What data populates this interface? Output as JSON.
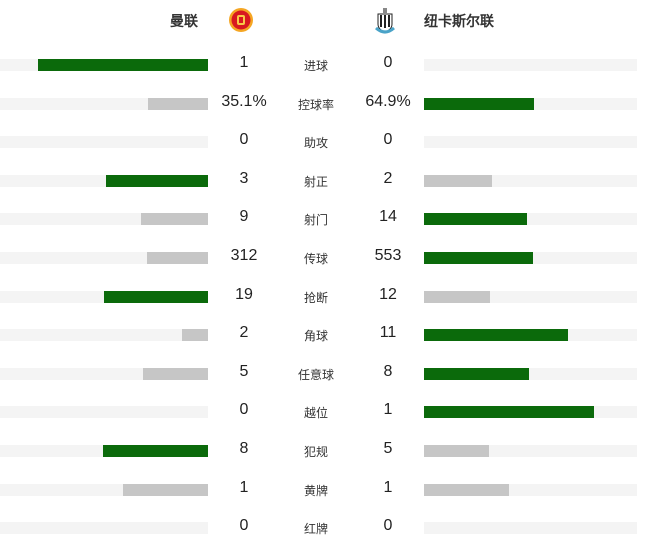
{
  "header": {
    "home": "曼联",
    "away": "纽卡斯尔联",
    "home_logo": "manchester-united-crest",
    "away_logo": "newcastle-crest"
  },
  "colors": {
    "leader": "#0b6a0b",
    "trailer": "#c6c6c6",
    "track": "#f4f4f4"
  },
  "stats": [
    {
      "label": "进球",
      "home": "1",
      "away": "0",
      "h": 1,
      "a": 0
    },
    {
      "label": "控球率",
      "home": "35.1%",
      "away": "64.9%",
      "h": 35.1,
      "a": 64.9
    },
    {
      "label": "助攻",
      "home": "0",
      "away": "0",
      "h": 0,
      "a": 0
    },
    {
      "label": "射正",
      "home": "3",
      "away": "2",
      "h": 3,
      "a": 2
    },
    {
      "label": "射门",
      "home": "9",
      "away": "14",
      "h": 9,
      "a": 14
    },
    {
      "label": "传球",
      "home": "312",
      "away": "553",
      "h": 312,
      "a": 553
    },
    {
      "label": "抢断",
      "home": "19",
      "away": "12",
      "h": 19,
      "a": 12
    },
    {
      "label": "角球",
      "home": "2",
      "away": "11",
      "h": 2,
      "a": 11
    },
    {
      "label": "任意球",
      "home": "5",
      "away": "8",
      "h": 5,
      "a": 8
    },
    {
      "label": "越位",
      "home": "0",
      "away": "1",
      "h": 0,
      "a": 1
    },
    {
      "label": "犯规",
      "home": "8",
      "away": "5",
      "h": 8,
      "a": 5
    },
    {
      "label": "黄牌",
      "home": "1",
      "away": "1",
      "h": 1,
      "a": 1
    },
    {
      "label": "红牌",
      "home": "0",
      "away": "0",
      "h": 0,
      "a": 0
    }
  ]
}
